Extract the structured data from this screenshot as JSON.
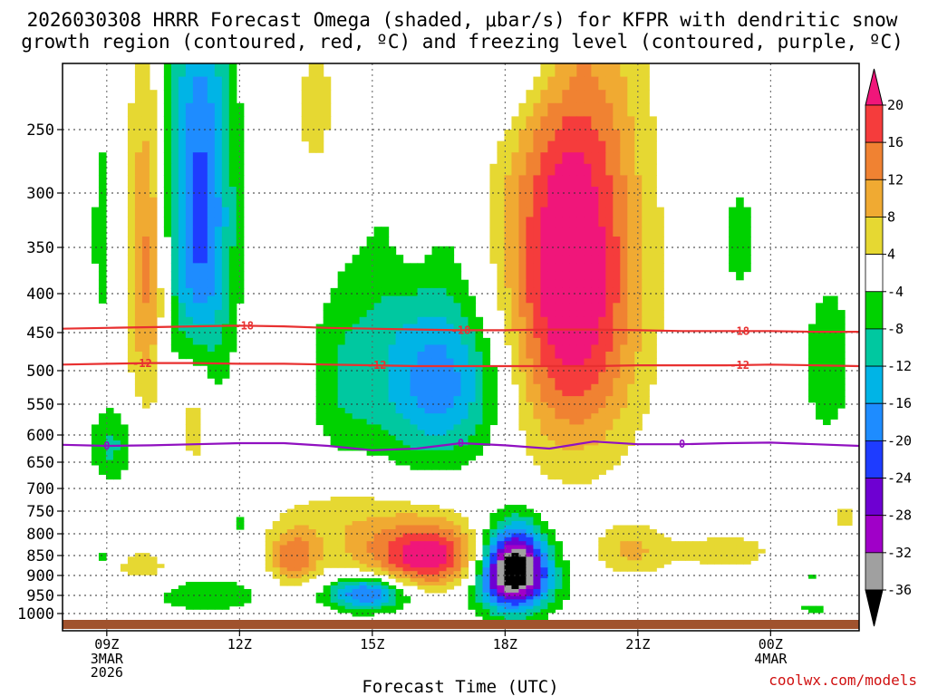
{
  "colors": {
    "brand": "#d01010",
    "dgz_contour": "#e83030",
    "freezing_contour": "#9010c0",
    "terrain": "#a0522d"
  },
  "chart_data": {
    "type": "contour",
    "title_lines": [
      "2026030308 HRRR Forecast Omega (shaded, μbar/s) for KFPR with dendritic snow",
      "growth region (contoured, red, ºC) and freezing level (contoured, purple, ºC)"
    ],
    "xlabel": "Forecast Time (UTC)",
    "ylabel": "",
    "credit": "coolwx.com/models",
    "x_range_hours": [
      8,
      26
    ],
    "x_ticks": [
      {
        "hour": 9,
        "label": "09Z",
        "sub": [
          "3MAR",
          "2026"
        ]
      },
      {
        "hour": 12,
        "label": "12Z",
        "sub": []
      },
      {
        "hour": 15,
        "label": "15Z",
        "sub": []
      },
      {
        "hour": 18,
        "label": "18Z",
        "sub": []
      },
      {
        "hour": 21,
        "label": "21Z",
        "sub": []
      },
      {
        "hour": 24,
        "label": "00Z",
        "sub": [
          "4MAR"
        ]
      }
    ],
    "y_axis": {
      "type": "pressure",
      "units": "mb",
      "range": [
        1015,
        205
      ],
      "ticks": [
        250,
        300,
        350,
        400,
        450,
        500,
        550,
        600,
        650,
        700,
        750,
        800,
        850,
        900,
        950,
        1000
      ]
    },
    "colorbar": {
      "units": "μbar/s",
      "ticks": [
        "20",
        "16",
        "12",
        "8",
        "4",
        "-4",
        "-8",
        "-12",
        "-16",
        "-20",
        "-24",
        "-28",
        "-32",
        "-36"
      ],
      "colors_top_to_bottom": [
        "#f0167a",
        "#f53c3c",
        "#f08232",
        "#f0aa32",
        "#e6d832",
        "#ffffff",
        "#00d200",
        "#00c8a0",
        "#00b4e6",
        "#1e8cff",
        "#1e3cff",
        "#6e00d2",
        "#a000c8",
        "#a0a0a0",
        "#000000"
      ]
    },
    "series": [
      {
        "name": "dgz_-18C",
        "color": "#e83030",
        "label": "-18",
        "points": [
          [
            8,
            445
          ],
          [
            9,
            444
          ],
          [
            10,
            443
          ],
          [
            11,
            442
          ],
          [
            12,
            441
          ],
          [
            13,
            442
          ],
          [
            14,
            444
          ],
          [
            15,
            445
          ],
          [
            16,
            446
          ],
          [
            17,
            447
          ],
          [
            18,
            447
          ],
          [
            19,
            446
          ],
          [
            20,
            446
          ],
          [
            21,
            447
          ],
          [
            22,
            448
          ],
          [
            23,
            448
          ],
          [
            24,
            448
          ],
          [
            25,
            449
          ],
          [
            26,
            449
          ]
        ],
        "label_hours": [
          12.1,
          17.0,
          23.3
        ]
      },
      {
        "name": "dgz_-12C",
        "color": "#e83030",
        "label": "-12",
        "points": [
          [
            8,
            492
          ],
          [
            9,
            491
          ],
          [
            10,
            490
          ],
          [
            11,
            490
          ],
          [
            12,
            491
          ],
          [
            13,
            491
          ],
          [
            14,
            492
          ],
          [
            15,
            493
          ],
          [
            16,
            494
          ],
          [
            17,
            494
          ],
          [
            18,
            494
          ],
          [
            19,
            494
          ],
          [
            20,
            494
          ],
          [
            21,
            493
          ],
          [
            22,
            493
          ],
          [
            23,
            493
          ],
          [
            24,
            492
          ],
          [
            25,
            493
          ],
          [
            26,
            494
          ]
        ],
        "label_hours": [
          9.8,
          15.1,
          23.3
        ]
      },
      {
        "name": "freezing_0C",
        "color": "#9010c0",
        "label": "0",
        "points": [
          [
            8,
            618
          ],
          [
            9,
            620
          ],
          [
            10,
            619
          ],
          [
            11,
            617
          ],
          [
            12,
            615
          ],
          [
            13,
            615
          ],
          [
            14,
            620
          ],
          [
            15,
            628
          ],
          [
            16,
            625
          ],
          [
            17,
            615
          ],
          [
            18,
            619
          ],
          [
            19,
            625
          ],
          [
            20,
            612
          ],
          [
            21,
            617
          ],
          [
            22,
            617
          ],
          [
            23,
            615
          ],
          [
            24,
            614
          ],
          [
            25,
            617
          ],
          [
            26,
            620
          ]
        ],
        "label_hours": [
          9.0,
          17.0,
          22.0
        ]
      }
    ],
    "omega_cells": [
      {
        "name": "cell-warm-tall-19z",
        "hour": 19.5,
        "p": 380,
        "rh": 1.5,
        "rp": 230,
        "peak": 26
      },
      {
        "name": "cell-warm-upper-15z-a",
        "hour": 13.8,
        "p": 240,
        "rh": 0.9,
        "rp": 110,
        "peak": 5
      },
      {
        "name": "cell-warm-upper-15z-b",
        "hour": 15.9,
        "p": 300,
        "rh": 0.45,
        "rp": 90,
        "peak": 6
      },
      {
        "name": "cell-warm-low-16z",
        "hour": 16.3,
        "p": 860,
        "rh": 1.3,
        "rp": 90,
        "peak": 24
      },
      {
        "name": "cell-warm-low-13z",
        "hour": 13.2,
        "p": 860,
        "rh": 0.55,
        "rp": 70,
        "peak": 14
      },
      {
        "name": "cell-warm-low-14z",
        "hour": 14.5,
        "p": 780,
        "rh": 1.6,
        "rp": 120,
        "peak": 7
      },
      {
        "name": "cell-warm-10z",
        "hour": 9.9,
        "p": 370,
        "rh": 0.45,
        "rp": 180,
        "peak": 14
      },
      {
        "name": "cell-warm-11z",
        "hour": 11.0,
        "p": 560,
        "rh": 0.4,
        "rp": 110,
        "peak": 9
      },
      {
        "name": "cell-warm-0130z",
        "hour": 25.7,
        "p": 760,
        "rh": 0.4,
        "rp": 40,
        "peak": 5
      },
      {
        "name": "cell-warm-2230z",
        "hour": 23.0,
        "p": 840,
        "rh": 1.7,
        "rp": 70,
        "peak": 5
      },
      {
        "name": "cell-warm-10z-low",
        "hour": 9.8,
        "p": 880,
        "rh": 0.7,
        "rp": 45,
        "peak": 7
      },
      {
        "name": "cell-warm-20z-low",
        "hour": 20.8,
        "p": 840,
        "rh": 0.8,
        "rp": 60,
        "peak": 8
      },
      {
        "name": "cell-sink-18z-core",
        "hour": 18.2,
        "p": 880,
        "rh": 0.75,
        "rp": 100,
        "peak": -42
      },
      {
        "name": "cell-sink-11z",
        "hour": 11.1,
        "p": 320,
        "rh": 0.75,
        "rp": 190,
        "peak": -22
      },
      {
        "name": "cell-sink-16z",
        "hour": 16.7,
        "p": 520,
        "rh": 1.4,
        "rp": 120,
        "peak": -15
      },
      {
        "name": "cell-sink-1530z",
        "hour": 15.7,
        "p": 450,
        "rh": 1.4,
        "rp": 230,
        "peak": -6
      },
      {
        "name": "cell-sink-14z",
        "hour": 14.3,
        "p": 520,
        "rh": 0.8,
        "rp": 150,
        "peak": -6
      },
      {
        "name": "cell-sink-17z-low",
        "hour": 17.4,
        "p": 930,
        "rh": 2.2,
        "rp": 70,
        "peak": -6
      },
      {
        "name": "cell-sink-15z-low",
        "hour": 14.9,
        "p": 945,
        "rh": 0.9,
        "rp": 45,
        "peak": -22
      },
      {
        "name": "cell-sink-12z-low",
        "hour": 11.3,
        "p": 950,
        "rh": 1.8,
        "rp": 60,
        "peak": -6
      },
      {
        "name": "cell-sink-09z-low",
        "hour": 9.1,
        "p": 620,
        "rh": 0.5,
        "rp": 70,
        "peak": -9
      },
      {
        "name": "cell-sink-0830z-up",
        "hour": 8.9,
        "p": 340,
        "rh": 0.28,
        "rp": 110,
        "peak": -6
      },
      {
        "name": "cell-sink-0230z",
        "hour": 25.3,
        "p": 490,
        "rh": 0.6,
        "rp": 120,
        "peak": -7
      },
      {
        "name": "cell-sink-2330z",
        "hour": 23.3,
        "p": 345,
        "rh": 0.45,
        "rp": 60,
        "peak": -6
      },
      {
        "name": "cell-sink-1730z-top",
        "hour": 18.4,
        "p": 200,
        "rh": 1.2,
        "rp": 50,
        "peak": -9
      },
      {
        "name": "cell-sink-0130z-low",
        "hour": 25.0,
        "p": 985,
        "rh": 0.4,
        "rp": 15,
        "peak": -6
      },
      {
        "name": "cell-sink-0130z-mid",
        "hour": 25.0,
        "p": 900,
        "rh": 0.15,
        "rp": 25,
        "peak": -6
      },
      {
        "name": "cell-sink-0830z-low",
        "hour": 8.9,
        "p": 855,
        "rh": 0.3,
        "rp": 25,
        "peak": -6
      },
      {
        "name": "cell-sink-12z-mid",
        "hour": 12.0,
        "p": 780,
        "rh": 0.2,
        "rp": 25,
        "peak": -6
      }
    ]
  }
}
